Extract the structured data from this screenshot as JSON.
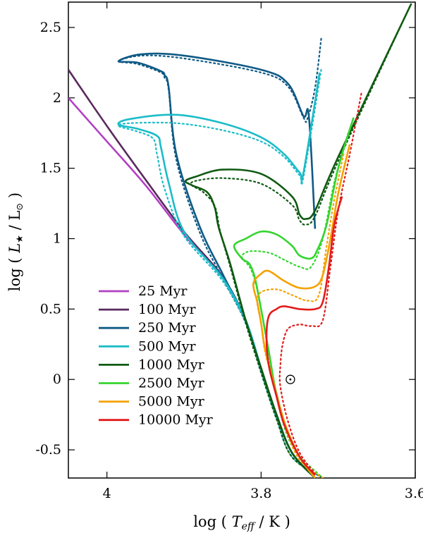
{
  "chart_data": {
    "type": "line",
    "xlabel": "log ( T_eff / K )",
    "ylabel": "log ( L★ / L⊙ )",
    "xlim": [
      4.05,
      3.6
    ],
    "ylim": [
      -0.7,
      2.68
    ],
    "x_reversed": true,
    "x_ticks": [
      {
        "value": 4.0,
        "label": "4"
      },
      {
        "value": 3.8,
        "label": "3.8"
      },
      {
        "value": 3.6,
        "label": "3.6"
      }
    ],
    "y_ticks": [
      {
        "value": -0.5,
        "label": "-0.5"
      },
      {
        "value": 0,
        "label": "0"
      },
      {
        "value": 0.5,
        "label": "0.5"
      },
      {
        "value": 1,
        "label": "1"
      },
      {
        "value": 1.5,
        "label": "1.5"
      },
      {
        "value": 2,
        "label": "2"
      },
      {
        "value": 2.5,
        "label": "2.5"
      }
    ],
    "grid": false,
    "legend_position": "bottom-left",
    "sun_marker": {
      "x": 3.762,
      "y": 0.0
    },
    "series": [
      {
        "name": "25 Myr",
        "color": "#b23fc4",
        "solid": [
          [
            4.05,
            2.0
          ],
          [
            4.0,
            1.69
          ],
          [
            3.95,
            1.38
          ],
          [
            3.9,
            1.03
          ],
          [
            3.85,
            0.72
          ],
          [
            3.82,
            0.42
          ],
          [
            3.8,
            0.08
          ],
          [
            3.78,
            -0.25
          ],
          [
            3.76,
            -0.52
          ],
          [
            3.73,
            -0.7
          ]
        ],
        "dotted": []
      },
      {
        "name": "100 Myr",
        "color": "#5a2a5f",
        "solid": [
          [
            4.05,
            2.2
          ],
          [
            4.0,
            1.8
          ],
          [
            3.95,
            1.42
          ],
          [
            3.9,
            1.05
          ],
          [
            3.85,
            0.73
          ],
          [
            3.82,
            0.42
          ],
          [
            3.8,
            0.08
          ],
          [
            3.78,
            -0.25
          ],
          [
            3.76,
            -0.52
          ],
          [
            3.73,
            -0.7
          ]
        ],
        "dotted": []
      },
      {
        "name": "250 Myr",
        "color": "#0f5a85",
        "solid": [
          [
            3.73,
            1.07
          ],
          [
            3.738,
            1.87
          ],
          [
            3.745,
            1.87
          ],
          [
            3.765,
            2.1
          ],
          [
            3.8,
            2.2
          ],
          [
            3.9,
            2.3
          ],
          [
            3.955,
            2.31
          ],
          [
            3.985,
            2.26
          ],
          [
            3.96,
            2.25
          ],
          [
            3.93,
            2.19
          ],
          [
            3.925,
            2.16
          ],
          [
            3.92,
            2.08
          ],
          [
            3.91,
            1.6
          ],
          [
            3.88,
            1.09
          ],
          [
            3.85,
            0.75
          ],
          [
            3.82,
            0.42
          ],
          [
            3.8,
            0.08
          ],
          [
            3.78,
            -0.25
          ],
          [
            3.76,
            -0.52
          ],
          [
            3.73,
            -0.7
          ]
        ],
        "dotted": [
          [
            3.722,
            2.42
          ],
          [
            3.73,
            2.07
          ],
          [
            3.74,
            1.85
          ],
          [
            3.745,
            1.86
          ],
          [
            3.765,
            2.08
          ],
          [
            3.8,
            2.18
          ],
          [
            3.9,
            2.28
          ],
          [
            3.955,
            2.3
          ],
          [
            3.985,
            2.26
          ],
          [
            3.96,
            2.24
          ],
          [
            3.93,
            2.18
          ],
          [
            3.925,
            2.14
          ],
          [
            3.92,
            2.06
          ],
          [
            3.91,
            1.56
          ],
          [
            3.88,
            1.05
          ],
          [
            3.85,
            0.72
          ],
          [
            3.82,
            0.4
          ],
          [
            3.8,
            0.05
          ],
          [
            3.78,
            -0.28
          ],
          [
            3.76,
            -0.55
          ],
          [
            3.72,
            -0.7
          ]
        ]
      },
      {
        "name": "500 Myr",
        "color": "#1bbcc8",
        "solid": [
          [
            3.724,
            2.18
          ],
          [
            3.745,
            1.47
          ],
          [
            3.75,
            1.47
          ],
          [
            3.77,
            1.6
          ],
          [
            3.8,
            1.72
          ],
          [
            3.85,
            1.82
          ],
          [
            3.91,
            1.88
          ],
          [
            3.97,
            1.85
          ],
          [
            3.985,
            1.81
          ],
          [
            3.96,
            1.78
          ],
          [
            3.935,
            1.73
          ],
          [
            3.93,
            1.65
          ],
          [
            3.92,
            1.4
          ],
          [
            3.9,
            1.05
          ],
          [
            3.85,
            0.72
          ],
          [
            3.82,
            0.42
          ],
          [
            3.8,
            0.08
          ],
          [
            3.78,
            -0.25
          ],
          [
            3.76,
            -0.52
          ],
          [
            3.73,
            -0.7
          ]
        ],
        "dotted": [
          [
            3.722,
            2.2
          ],
          [
            3.745,
            1.44
          ],
          [
            3.75,
            1.45
          ],
          [
            3.77,
            1.58
          ],
          [
            3.8,
            1.69
          ],
          [
            3.85,
            1.77
          ],
          [
            3.91,
            1.82
          ],
          [
            3.97,
            1.82
          ],
          [
            3.985,
            1.8
          ],
          [
            3.96,
            1.76
          ],
          [
            3.94,
            1.71
          ],
          [
            3.935,
            1.6
          ],
          [
            3.925,
            1.35
          ],
          [
            3.9,
            1.02
          ],
          [
            3.85,
            0.7
          ],
          [
            3.82,
            0.4
          ],
          [
            3.8,
            0.05
          ],
          [
            3.78,
            -0.28
          ],
          [
            3.76,
            -0.55
          ],
          [
            3.72,
            -0.7
          ]
        ]
      },
      {
        "name": "1000 Myr",
        "color": "#0f5a12",
        "solid": [
          [
            3.605,
            2.67
          ],
          [
            3.7,
            1.58
          ],
          [
            3.73,
            1.2
          ],
          [
            3.742,
            1.14
          ],
          [
            3.75,
            1.17
          ],
          [
            3.76,
            1.3
          ],
          [
            3.8,
            1.46
          ],
          [
            3.85,
            1.49
          ],
          [
            3.885,
            1.44
          ],
          [
            3.898,
            1.41
          ],
          [
            3.89,
            1.38
          ],
          [
            3.87,
            1.33
          ],
          [
            3.86,
            1.22
          ],
          [
            3.855,
            1.08
          ],
          [
            3.84,
            0.82
          ],
          [
            3.82,
            0.42
          ],
          [
            3.8,
            0.08
          ],
          [
            3.78,
            -0.25
          ],
          [
            3.76,
            -0.52
          ],
          [
            3.73,
            -0.7
          ]
        ],
        "dotted": [
          [
            3.607,
            2.65
          ],
          [
            3.7,
            1.55
          ],
          [
            3.73,
            1.16
          ],
          [
            3.742,
            1.1
          ],
          [
            3.75,
            1.13
          ],
          [
            3.76,
            1.24
          ],
          [
            3.8,
            1.39
          ],
          [
            3.85,
            1.43
          ],
          [
            3.885,
            1.41
          ],
          [
            3.89,
            1.38
          ],
          [
            3.875,
            1.33
          ],
          [
            3.86,
            1.23
          ],
          [
            3.853,
            1.05
          ],
          [
            3.84,
            0.8
          ],
          [
            3.82,
            0.4
          ],
          [
            3.8,
            0.05
          ],
          [
            3.78,
            -0.28
          ],
          [
            3.76,
            -0.55
          ],
          [
            3.72,
            -0.7
          ]
        ]
      },
      {
        "name": "2500 Myr",
        "color": "#34d42f",
        "solid": [
          [
            3.68,
            1.86
          ],
          [
            3.7,
            1.5
          ],
          [
            3.715,
            1.1
          ],
          [
            3.727,
            0.92
          ],
          [
            3.735,
            0.86
          ],
          [
            3.75,
            0.88
          ],
          [
            3.76,
            0.95
          ],
          [
            3.78,
            1.03
          ],
          [
            3.8,
            1.05
          ],
          [
            3.82,
            1.0
          ],
          [
            3.835,
            0.95
          ],
          [
            3.825,
            0.86
          ],
          [
            3.815,
            0.82
          ],
          [
            3.808,
            0.72
          ],
          [
            3.8,
            0.5
          ],
          [
            3.79,
            0.2
          ],
          [
            3.78,
            -0.1
          ],
          [
            3.76,
            -0.45
          ],
          [
            3.73,
            -0.7
          ]
        ],
        "dotted": [
          [
            3.687,
            1.75
          ],
          [
            3.705,
            1.4
          ],
          [
            3.72,
            1.0
          ],
          [
            3.735,
            0.8
          ],
          [
            3.75,
            0.8
          ],
          [
            3.77,
            0.85
          ],
          [
            3.79,
            0.9
          ],
          [
            3.815,
            0.91
          ],
          [
            3.825,
            0.87
          ],
          [
            3.815,
            0.8
          ],
          [
            3.808,
            0.7
          ],
          [
            3.8,
            0.5
          ],
          [
            3.79,
            0.18
          ],
          [
            3.78,
            -0.12
          ],
          [
            3.76,
            -0.47
          ],
          [
            3.72,
            -0.7
          ]
        ]
      },
      {
        "name": "5000 Myr",
        "color": "#f5a100",
        "solid": [
          [
            3.685,
            1.67
          ],
          [
            3.7,
            1.32
          ],
          [
            3.71,
            1.0
          ],
          [
            3.72,
            0.74
          ],
          [
            3.73,
            0.66
          ],
          [
            3.75,
            0.65
          ],
          [
            3.77,
            0.7
          ],
          [
            3.79,
            0.77
          ],
          [
            3.8,
            0.75
          ],
          [
            3.81,
            0.68
          ],
          [
            3.805,
            0.55
          ],
          [
            3.8,
            0.4
          ],
          [
            3.795,
            0.22
          ],
          [
            3.785,
            0.0
          ],
          [
            3.77,
            -0.3
          ],
          [
            3.75,
            -0.55
          ],
          [
            3.73,
            -0.7
          ]
        ],
        "dotted": [
          [
            3.693,
            1.6
          ],
          [
            3.705,
            1.28
          ],
          [
            3.715,
            0.95
          ],
          [
            3.725,
            0.6
          ],
          [
            3.74,
            0.56
          ],
          [
            3.76,
            0.6
          ],
          [
            3.78,
            0.64
          ],
          [
            3.8,
            0.62
          ],
          [
            3.805,
            0.55
          ],
          [
            3.8,
            0.4
          ],
          [
            3.795,
            0.2
          ],
          [
            3.785,
            0.0
          ],
          [
            3.77,
            -0.32
          ],
          [
            3.75,
            -0.57
          ],
          [
            3.72,
            -0.7
          ]
        ]
      },
      {
        "name": "10000 Myr",
        "color": "#e21b1b",
        "solid": [
          [
            3.695,
            1.3
          ],
          [
            3.705,
            1.1
          ],
          [
            3.712,
            0.8
          ],
          [
            3.72,
            0.55
          ],
          [
            3.73,
            0.5
          ],
          [
            3.75,
            0.5
          ],
          [
            3.77,
            0.52
          ],
          [
            3.78,
            0.5
          ],
          [
            3.79,
            0.45
          ],
          [
            3.793,
            0.3
          ],
          [
            3.79,
            0.1
          ],
          [
            3.78,
            -0.12
          ],
          [
            3.77,
            -0.32
          ],
          [
            3.75,
            -0.55
          ],
          [
            3.73,
            -0.68
          ]
        ],
        "dotted": [
          [
            3.67,
            2.03
          ],
          [
            3.685,
            1.6
          ],
          [
            3.7,
            1.2
          ],
          [
            3.71,
            0.8
          ],
          [
            3.72,
            0.42
          ],
          [
            3.735,
            0.38
          ],
          [
            3.75,
            0.39
          ],
          [
            3.765,
            0.36
          ],
          [
            3.772,
            0.25
          ],
          [
            3.775,
            0.1
          ],
          [
            3.775,
            -0.05
          ],
          [
            3.765,
            -0.3
          ],
          [
            3.75,
            -0.52
          ],
          [
            3.73,
            -0.67
          ]
        ]
      }
    ]
  }
}
